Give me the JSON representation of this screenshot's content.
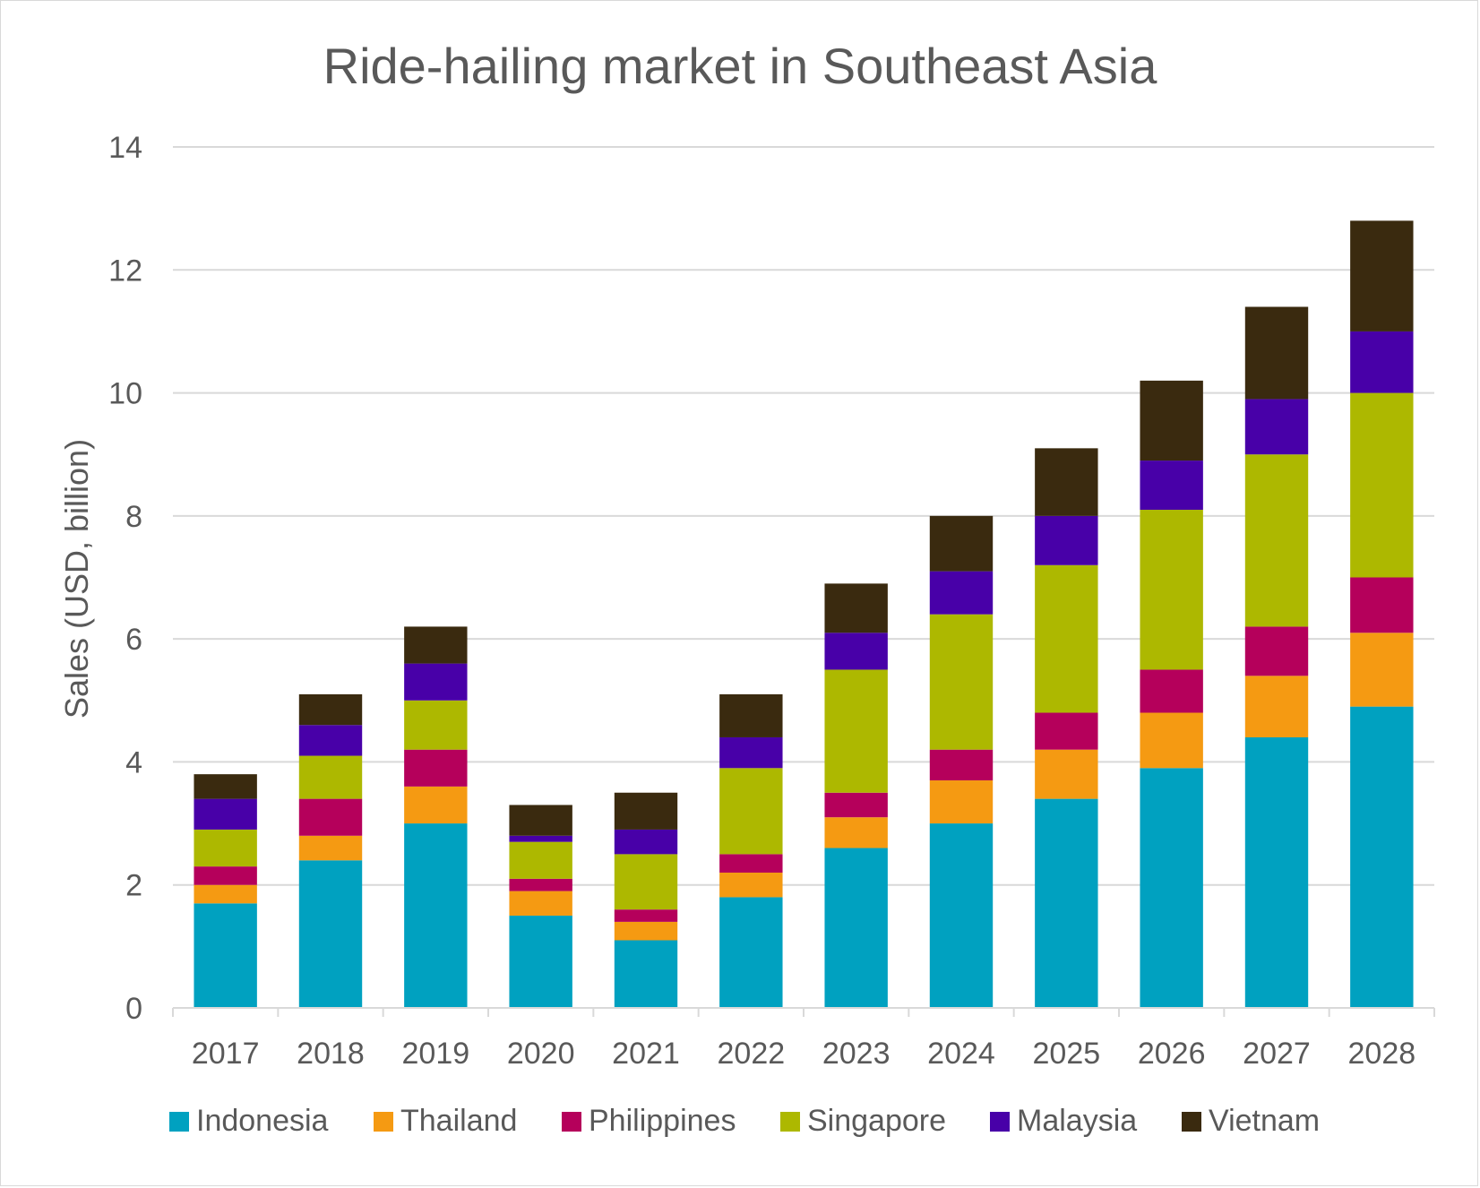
{
  "chart_data": {
    "type": "bar",
    "stacked": true,
    "title": "Ride-hailing market in Southeast Asia",
    "xlabel": "",
    "ylabel": "Sales (USD, billion)",
    "ylim": [
      0,
      14
    ],
    "yticks": [
      0,
      2,
      4,
      6,
      8,
      10,
      12,
      14
    ],
    "grid": true,
    "legend_position": "bottom",
    "categories": [
      "2017",
      "2018",
      "2019",
      "2020",
      "2021",
      "2022",
      "2023",
      "2024",
      "2025",
      "2026",
      "2027",
      "2028"
    ],
    "series": [
      {
        "name": "Indonesia",
        "color": "#00a1c0",
        "values": [
          1.7,
          2.4,
          3.0,
          1.5,
          1.1,
          1.8,
          2.6,
          3.0,
          3.4,
          3.9,
          4.4,
          4.9
        ]
      },
      {
        "name": "Thailand",
        "color": "#f59a12",
        "values": [
          0.3,
          0.4,
          0.6,
          0.4,
          0.3,
          0.4,
          0.5,
          0.7,
          0.8,
          0.9,
          1.0,
          1.2
        ]
      },
      {
        "name": "Philippines",
        "color": "#b5005b",
        "values": [
          0.3,
          0.6,
          0.6,
          0.2,
          0.2,
          0.3,
          0.4,
          0.5,
          0.6,
          0.7,
          0.8,
          0.9
        ]
      },
      {
        "name": "Singapore",
        "color": "#adb800",
        "values": [
          0.6,
          0.7,
          0.8,
          0.6,
          0.9,
          1.4,
          2.0,
          2.2,
          2.4,
          2.6,
          2.8,
          3.0
        ]
      },
      {
        "name": "Malaysia",
        "color": "#4800a8",
        "values": [
          0.5,
          0.5,
          0.6,
          0.1,
          0.4,
          0.5,
          0.6,
          0.7,
          0.8,
          0.8,
          0.9,
          1.0
        ]
      },
      {
        "name": "Vietnam",
        "color": "#3a2a0f",
        "values": [
          0.4,
          0.5,
          0.6,
          0.5,
          0.6,
          0.7,
          0.8,
          0.9,
          1.1,
          1.3,
          1.5,
          1.8
        ]
      }
    ]
  }
}
